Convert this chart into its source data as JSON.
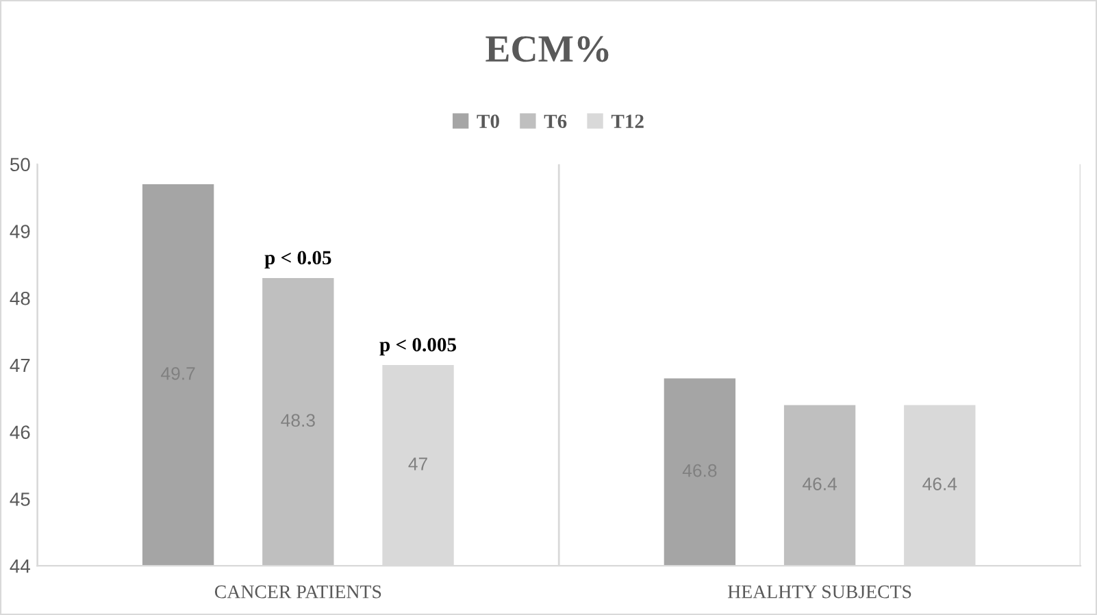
{
  "chart_data": {
    "type": "bar",
    "title": "ECM%",
    "categories": [
      "CANCER PATIENTS",
      "HEALHTY SUBJECTS"
    ],
    "series": [
      {
        "name": "T0",
        "color": "#a5a5a5",
        "values": [
          49.7,
          46.8
        ]
      },
      {
        "name": "T6",
        "color": "#bfbfbf",
        "values": [
          48.3,
          46.4
        ]
      },
      {
        "name": "T12",
        "color": "#d9d9d9",
        "values": [
          47,
          46.4
        ]
      }
    ],
    "ylim": [
      44,
      50
    ],
    "yticks": [
      44,
      45,
      46,
      47,
      48,
      49,
      50
    ],
    "grid": "x",
    "legend": "top",
    "data_labels": true,
    "annotations": [
      "p < 0.05",
      "p < 0.005"
    ]
  }
}
